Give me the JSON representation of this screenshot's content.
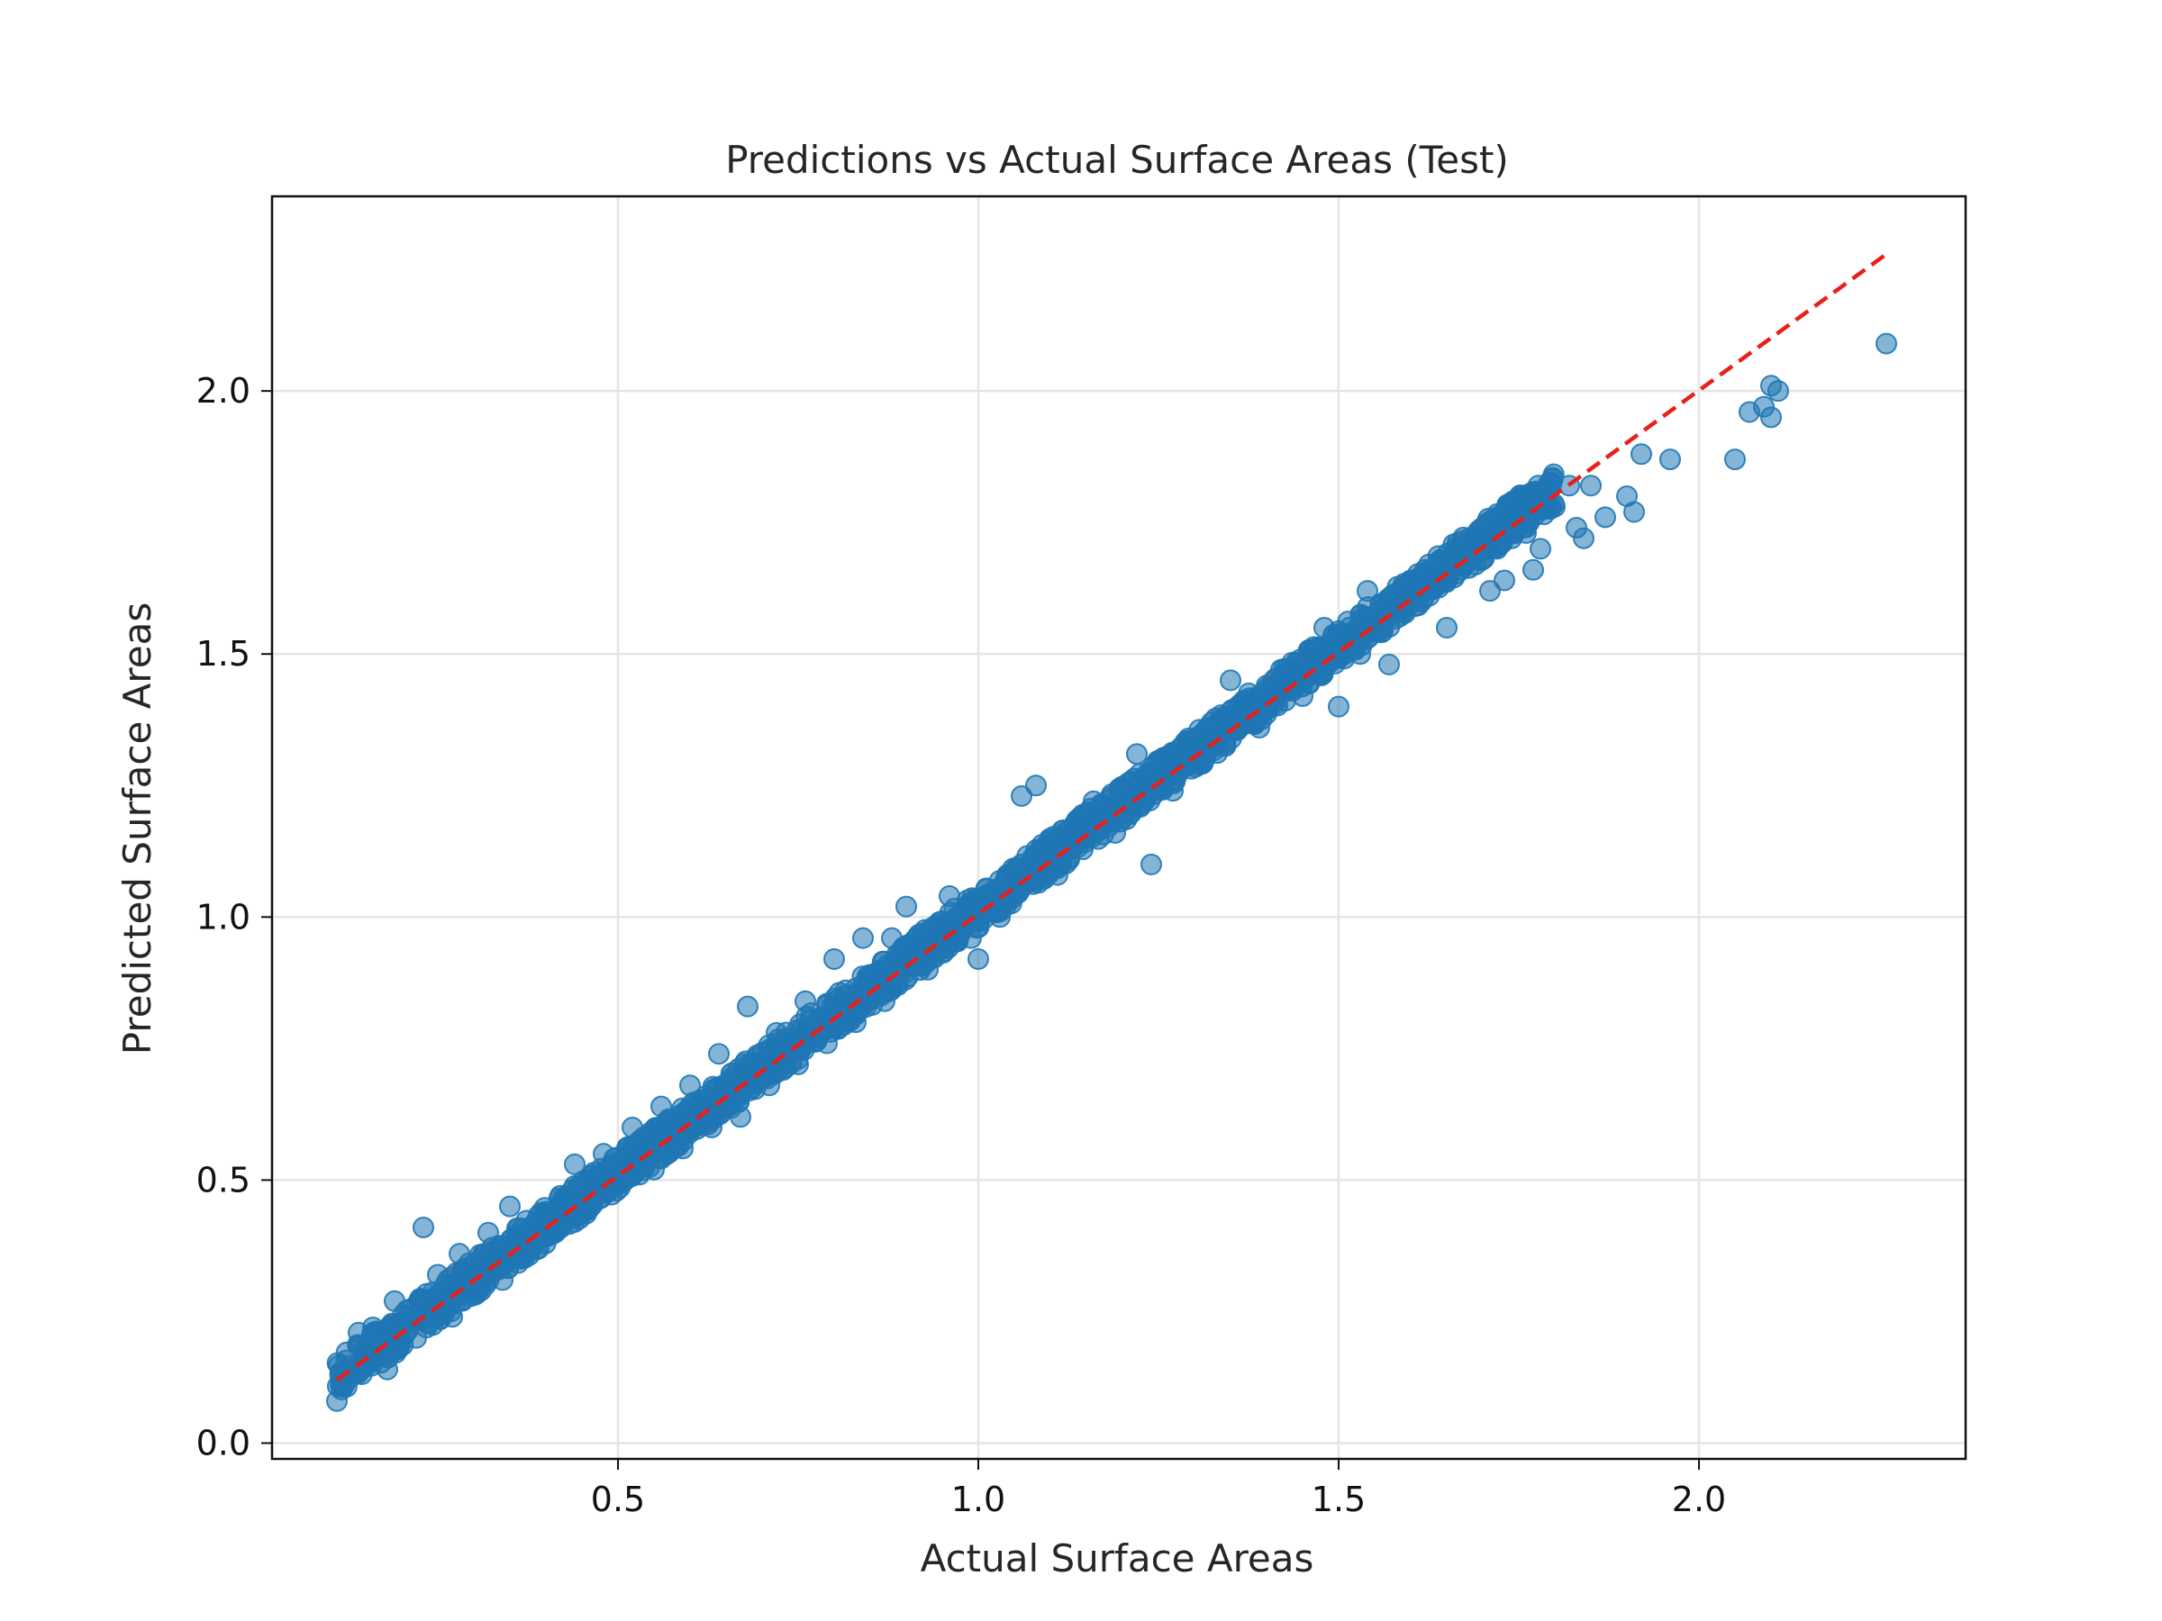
{
  "chart_data": {
    "type": "scatter",
    "title": "Predictions vs Actual Surface Areas (Test)",
    "xlabel": "Actual Surface Areas",
    "ylabel": "Predicted Surface Areas",
    "xlim": [
      0.02,
      2.37
    ],
    "ylim": [
      -0.03,
      2.37
    ],
    "xticks": [
      0.5,
      1.0,
      1.5,
      2.0
    ],
    "xtick_labels": [
      "0.5",
      "1.0",
      "1.5",
      "2.0"
    ],
    "yticks": [
      0.0,
      0.5,
      1.0,
      1.5,
      2.0
    ],
    "ytick_labels": [
      "0.0",
      "0.5",
      "1.0",
      "1.5",
      "2.0"
    ],
    "grid": true,
    "reference_line": {
      "x": [
        0.11,
        2.26
      ],
      "y": [
        0.12,
        2.26
      ],
      "style": "dashed",
      "color": "#e8201a"
    },
    "series": [
      {
        "color": "#1f77b4",
        "points": [
          [
            0.11,
            0.08
          ],
          [
            0.12,
            0.11
          ],
          [
            0.14,
            0.21
          ],
          [
            0.15,
            0.15
          ],
          [
            0.16,
            0.22
          ],
          [
            0.18,
            0.14
          ],
          [
            0.19,
            0.27
          ],
          [
            0.2,
            0.23
          ],
          [
            0.22,
            0.2
          ],
          [
            0.23,
            0.41
          ],
          [
            0.24,
            0.27
          ],
          [
            0.25,
            0.32
          ],
          [
            0.26,
            0.3
          ],
          [
            0.27,
            0.24
          ],
          [
            0.28,
            0.36
          ],
          [
            0.29,
            0.29
          ],
          [
            0.3,
            0.34
          ],
          [
            0.31,
            0.29
          ],
          [
            0.32,
            0.4
          ],
          [
            0.33,
            0.34
          ],
          [
            0.34,
            0.31
          ],
          [
            0.35,
            0.45
          ],
          [
            0.36,
            0.38
          ],
          [
            0.37,
            0.36
          ],
          [
            0.38,
            0.41
          ],
          [
            0.39,
            0.37
          ],
          [
            0.4,
            0.44
          ],
          [
            0.41,
            0.41
          ],
          [
            0.42,
            0.47
          ],
          [
            0.43,
            0.43
          ],
          [
            0.44,
            0.53
          ],
          [
            0.45,
            0.45
          ],
          [
            0.46,
            0.5
          ],
          [
            0.47,
            0.47
          ],
          [
            0.48,
            0.55
          ],
          [
            0.49,
            0.49
          ],
          [
            0.5,
            0.52
          ],
          [
            0.51,
            0.5
          ],
          [
            0.52,
            0.6
          ],
          [
            0.53,
            0.53
          ],
          [
            0.54,
            0.56
          ],
          [
            0.55,
            0.52
          ],
          [
            0.56,
            0.64
          ],
          [
            0.57,
            0.58
          ],
          [
            0.58,
            0.6
          ],
          [
            0.59,
            0.56
          ],
          [
            0.6,
            0.68
          ],
          [
            0.61,
            0.62
          ],
          [
            0.62,
            0.64
          ],
          [
            0.63,
            0.6
          ],
          [
            0.64,
            0.74
          ],
          [
            0.65,
            0.66
          ],
          [
            0.66,
            0.68
          ],
          [
            0.67,
            0.62
          ],
          [
            0.68,
            0.83
          ],
          [
            0.69,
            0.69
          ],
          [
            0.7,
            0.72
          ],
          [
            0.71,
            0.68
          ],
          [
            0.72,
            0.78
          ],
          [
            0.73,
            0.73
          ],
          [
            0.74,
            0.76
          ],
          [
            0.75,
            0.72
          ],
          [
            0.76,
            0.84
          ],
          [
            0.77,
            0.77
          ],
          [
            0.78,
            0.8
          ],
          [
            0.79,
            0.76
          ],
          [
            0.8,
            0.92
          ],
          [
            0.81,
            0.81
          ],
          [
            0.82,
            0.84
          ],
          [
            0.83,
            0.8
          ],
          [
            0.84,
            0.96
          ],
          [
            0.85,
            0.85
          ],
          [
            0.86,
            0.88
          ],
          [
            0.87,
            0.84
          ],
          [
            0.88,
            0.96
          ],
          [
            0.89,
            0.89
          ],
          [
            0.9,
            1.02
          ],
          [
            0.91,
            0.91
          ],
          [
            0.92,
            0.94
          ],
          [
            0.93,
            0.9
          ],
          [
            0.94,
            0.98
          ],
          [
            0.95,
            0.95
          ],
          [
            0.96,
            1.04
          ],
          [
            0.97,
            0.97
          ],
          [
            0.98,
            1.0
          ],
          [
            0.99,
            0.96
          ],
          [
            1.0,
            0.92
          ],
          [
            1.01,
            1.01
          ],
          [
            1.02,
            1.04
          ],
          [
            1.03,
            1.0
          ],
          [
            1.04,
            1.08
          ],
          [
            1.05,
            1.05
          ],
          [
            1.06,
            1.23
          ],
          [
            1.07,
            1.07
          ],
          [
            1.08,
            1.25
          ],
          [
            1.09,
            1.09
          ],
          [
            1.1,
            1.12
          ],
          [
            1.11,
            1.08
          ],
          [
            1.12,
            1.16
          ],
          [
            1.13,
            1.13
          ],
          [
            1.14,
            1.18
          ],
          [
            1.15,
            1.15
          ],
          [
            1.16,
            1.22
          ],
          [
            1.17,
            1.17
          ],
          [
            1.18,
            1.2
          ],
          [
            1.19,
            1.16
          ],
          [
            1.2,
            1.24
          ],
          [
            1.21,
            1.21
          ],
          [
            1.22,
            1.31
          ],
          [
            1.23,
            1.23
          ],
          [
            1.24,
            1.1
          ],
          [
            1.25,
            1.25
          ],
          [
            1.26,
            1.28
          ],
          [
            1.27,
            1.24
          ],
          [
            1.28,
            1.32
          ],
          [
            1.29,
            1.29
          ],
          [
            1.3,
            1.33
          ],
          [
            1.31,
            1.31
          ],
          [
            1.32,
            1.36
          ],
          [
            1.33,
            1.33
          ],
          [
            1.34,
            1.38
          ],
          [
            1.35,
            1.45
          ],
          [
            1.36,
            1.4
          ],
          [
            1.37,
            1.37
          ],
          [
            1.38,
            1.4
          ],
          [
            1.39,
            1.36
          ],
          [
            1.4,
            1.44
          ],
          [
            1.41,
            1.41
          ],
          [
            1.42,
            1.47
          ],
          [
            1.43,
            1.43
          ],
          [
            1.44,
            1.46
          ],
          [
            1.45,
            1.42
          ],
          [
            1.46,
            1.5
          ],
          [
            1.47,
            1.47
          ],
          [
            1.48,
            1.55
          ],
          [
            1.49,
            1.49
          ],
          [
            1.5,
            1.4
          ],
          [
            1.51,
            1.51
          ],
          [
            1.52,
            1.54
          ],
          [
            1.53,
            1.5
          ],
          [
            1.54,
            1.62
          ],
          [
            1.55,
            1.55
          ],
          [
            1.56,
            1.58
          ],
          [
            1.57,
            1.48
          ],
          [
            1.58,
            1.61
          ],
          [
            1.59,
            1.58
          ],
          [
            1.6,
            1.64
          ],
          [
            1.61,
            1.6
          ],
          [
            1.62,
            1.66
          ],
          [
            1.63,
            1.63
          ],
          [
            1.64,
            1.66
          ],
          [
            1.65,
            1.55
          ],
          [
            1.66,
            1.68
          ],
          [
            1.67,
            1.66
          ],
          [
            1.68,
            1.69
          ],
          [
            1.69,
            1.67
          ],
          [
            1.7,
            1.68
          ],
          [
            1.71,
            1.62
          ],
          [
            1.72,
            1.7
          ],
          [
            1.73,
            1.64
          ],
          [
            1.74,
            1.72
          ],
          [
            1.75,
            1.78
          ],
          [
            1.76,
            1.73
          ],
          [
            1.77,
            1.66
          ],
          [
            1.78,
            1.7
          ],
          [
            1.79,
            1.79
          ],
          [
            1.8,
            1.78
          ],
          [
            1.82,
            1.82
          ],
          [
            1.83,
            1.74
          ],
          [
            1.84,
            1.72
          ],
          [
            1.85,
            1.82
          ],
          [
            1.87,
            1.76
          ],
          [
            1.9,
            1.8
          ],
          [
            1.91,
            1.77
          ],
          [
            1.92,
            1.88
          ],
          [
            1.96,
            1.87
          ],
          [
            2.05,
            1.87
          ],
          [
            2.07,
            1.96
          ],
          [
            2.09,
            1.97
          ],
          [
            2.1,
            2.01
          ],
          [
            2.1,
            1.95
          ],
          [
            2.11,
            2.0
          ],
          [
            2.26,
            2.09
          ]
        ]
      }
    ]
  }
}
